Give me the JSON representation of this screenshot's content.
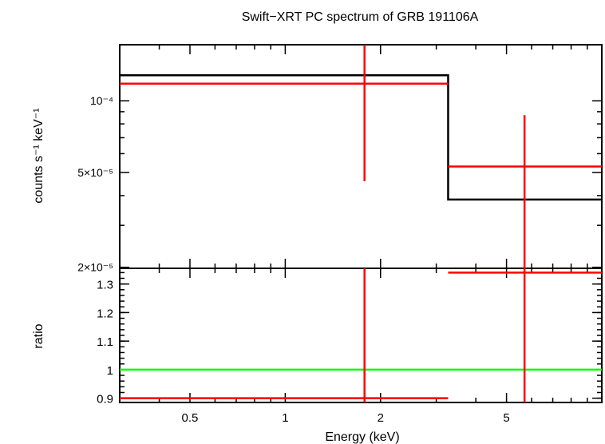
{
  "chart_data": [
    {
      "type": "line",
      "panel": "spectrum",
      "title": "Swift−XRT PC spectrum of GRB 191106A",
      "ylabel": "counts s⁻¹ keV⁻¹",
      "xscale": "log",
      "yscale": "log",
      "xlim": [
        0.3,
        10
      ],
      "ylim": [
        1.98e-05,
        0.000172
      ],
      "yticks": [
        {
          "value": 2e-05,
          "label": "2×10⁻⁵"
        },
        {
          "value": 5e-05,
          "label": "5×10⁻⁵"
        },
        {
          "value": 0.0001,
          "label": "10⁻⁴"
        }
      ],
      "model": {
        "color": "#000000",
        "steps": [
          {
            "x0": 0.3,
            "x1": 3.27,
            "y": 0.000128
          },
          {
            "x0": 3.27,
            "x1": 10,
            "y": 3.85e-05
          }
        ]
      },
      "data": {
        "color": "#ff0000",
        "points": [
          {
            "x": 1.78,
            "xlo": 0.3,
            "xhi": 3.27,
            "y": 0.000118,
            "ylo": 4.6e-05,
            "yhi": 0.000172
          },
          {
            "x": 5.7,
            "xlo": 3.27,
            "xhi": 10,
            "y": 5.3e-05,
            "ylo": 1.98e-05,
            "yhi": 8.7e-05
          }
        ]
      }
    },
    {
      "type": "line",
      "panel": "ratio",
      "xlabel": "Energy (keV)",
      "ylabel": "ratio",
      "xscale": "log",
      "yscale": "linear",
      "xlim": [
        0.3,
        10
      ],
      "ylim": [
        0.885,
        1.355
      ],
      "xticks": [
        {
          "value": 0.5,
          "label": "0.5"
        },
        {
          "value": 1,
          "label": "1"
        },
        {
          "value": 2,
          "label": "2"
        },
        {
          "value": 5,
          "label": "5"
        }
      ],
      "yticks": [
        {
          "value": 0.9,
          "label": "0.9"
        },
        {
          "value": 1,
          "label": "1"
        },
        {
          "value": 1.1,
          "label": "1.1"
        },
        {
          "value": 1.2,
          "label": "1.2"
        },
        {
          "value": 1.3,
          "label": "1.3"
        }
      ],
      "reference": {
        "y": 1,
        "color": "#00ff00"
      },
      "data": {
        "color": "#ff0000",
        "points": [
          {
            "x": 1.78,
            "xlo": 0.3,
            "xhi": 3.27,
            "y": 0.9,
            "ylo": 0.885,
            "yhi": 1.355
          },
          {
            "x": 5.7,
            "xlo": 3.27,
            "xhi": 10,
            "y": 1.34,
            "ylo": 0.885,
            "yhi": 1.355
          }
        ]
      }
    }
  ]
}
